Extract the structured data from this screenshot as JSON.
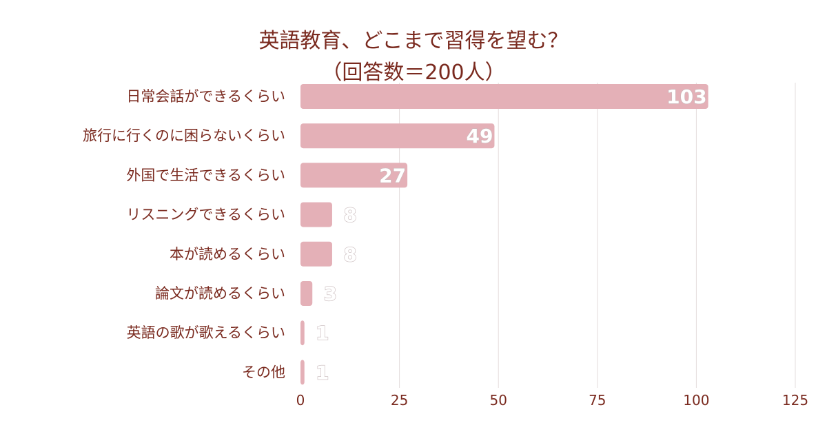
{
  "chart_data": {
    "type": "bar",
    "orientation": "horizontal",
    "title": "英語教育、どこまで習得を望む？",
    "subtitle": "（回答数＝200人）",
    "categories": [
      "日常会話ができるくらい",
      "旅行に行くのに困らないくらい",
      "外国で生活できるくらい",
      "リスニングできるくらい",
      "本が読めるくらい",
      "論文が読めるくらい",
      "英語の歌が歌えるくらい",
      "その他"
    ],
    "values": [
      103,
      49,
      27,
      8,
      8,
      3,
      1,
      1
    ],
    "xlim": [
      0,
      125
    ],
    "xticks": [
      "0",
      "25",
      "50",
      "75",
      "100",
      "125"
    ],
    "grid": "vertical",
    "legend": "none",
    "colors": {
      "bar": "#e4b0b7",
      "text": "#7a2a1f",
      "grid": "#e3dcdc",
      "label_fill": "#ffffff",
      "label_stroke": "#c7b8ba"
    }
  }
}
